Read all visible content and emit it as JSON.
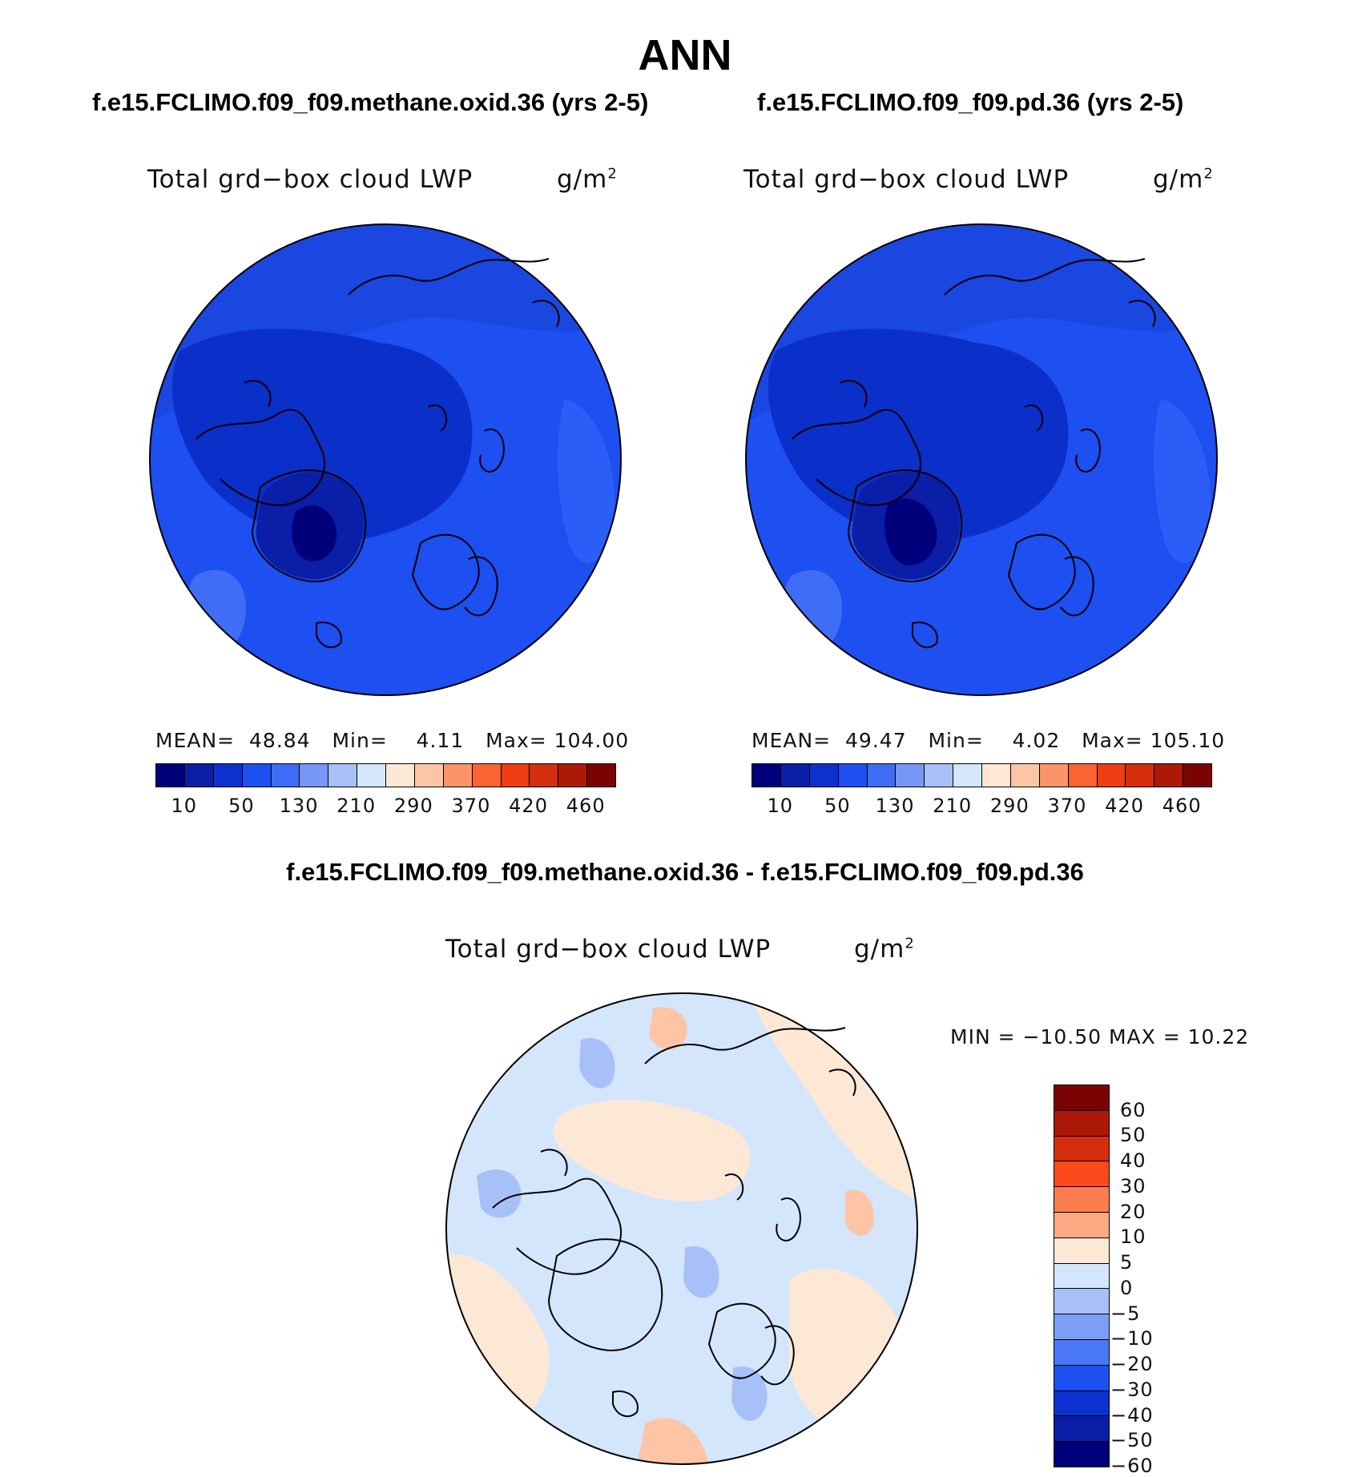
{
  "title": "ANN",
  "panels": [
    {
      "case": "f.e15.FCLIMO.f09_f09.methane.oxid.36 (yrs 2-5)",
      "variable": "Total grd−box cloud LWP",
      "units": "g/m",
      "units_exp": "2",
      "stats": {
        "mean_label": "MEAN=",
        "mean": "48.84",
        "min_label": "Min=",
        "min": "4.11",
        "max_label": "Max=",
        "max": "104.00"
      },
      "dominant_colors": [
        "#1a47e0",
        "#0b2fc9",
        "#2a5ef6",
        "#0a1a9a"
      ]
    },
    {
      "case": "f.e15.FCLIMO.f09_f09.pd.36 (yrs 2-5)",
      "variable": "Total grd−box cloud LWP",
      "units": "g/m",
      "units_exp": "2",
      "stats": {
        "mean_label": "MEAN=",
        "mean": "49.47",
        "min_label": "Min=",
        "min": "4.02",
        "max_label": "Max=",
        "max": "105.10"
      },
      "dominant_colors": [
        "#1a47e0",
        "#0b2fc9",
        "#2a5ef6",
        "#0a1a9a"
      ]
    }
  ],
  "main_colorbar": {
    "colors": [
      "#00007a",
      "#0a1ea8",
      "#0d31cf",
      "#1d4ff1",
      "#3f6df5",
      "#7896f6",
      "#a8c0f8",
      "#d4e6fc",
      "#fde8d6",
      "#fdc5a6",
      "#fb9468",
      "#fc6334",
      "#ef3c14",
      "#d52e0c",
      "#ac1a07",
      "#7c0303"
    ],
    "tick_labels": [
      "10",
      "50",
      "130",
      "210",
      "290",
      "370",
      "420",
      "460"
    ]
  },
  "difference": {
    "title": "f.e15.FCLIMO.f09_f09.methane.oxid.36 - f.e15.FCLIMO.f09_f09.pd.36",
    "variable": "Total grd−box cloud LWP",
    "units": "g/m",
    "units_exp": "2",
    "minmax": "MIN = −10.50 MAX =   10.22",
    "dominant_colors": [
      "#d4e6fc",
      "#fde8d6",
      "#a8c0f8",
      "#fdc5a6"
    ],
    "colorbar": {
      "colors_top_to_bottom": [
        "#7c0303",
        "#ac1a07",
        "#d52e0c",
        "#fc4a1c",
        "#fb7c4c",
        "#fdaa84",
        "#fde8d6",
        "#d4e6fc",
        "#a8c0f8",
        "#7c9ef6",
        "#4a77f5",
        "#1e4ff1",
        "#0d31cf",
        "#0a1ea8",
        "#00007a"
      ],
      "tick_labels": [
        "60",
        "50",
        "40",
        "30",
        "20",
        "10",
        "5",
        "0",
        "−5",
        "−10",
        "−20",
        "−30",
        "−40",
        "−50",
        "−60"
      ]
    }
  }
}
